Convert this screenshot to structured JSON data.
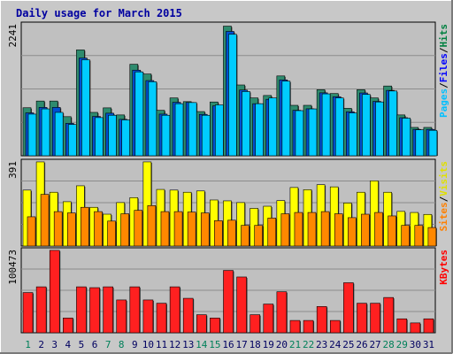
{
  "chart_data": {
    "type": "bar",
    "title": "Daily usage for March 2015",
    "categories": [
      "1",
      "2",
      "3",
      "4",
      "5",
      "6",
      "7",
      "8",
      "9",
      "10",
      "11",
      "12",
      "13",
      "14",
      "15",
      "16",
      "17",
      "18",
      "19",
      "20",
      "21",
      "22",
      "23",
      "24",
      "25",
      "26",
      "27",
      "28",
      "29",
      "30",
      "31"
    ],
    "weekend_days": [
      "1",
      "7",
      "8",
      "14",
      "15",
      "21",
      "22",
      "28",
      "29"
    ],
    "panels": [
      {
        "id": "hits-files-pages",
        "ymax_label": "2241",
        "ymax": 2241,
        "legend": [
          {
            "label": "Pages",
            "color": "#00c0ff"
          },
          {
            "label": "/",
            "color": "#000000"
          },
          {
            "label": "Files",
            "color": "#0000ff"
          },
          {
            "label": "/",
            "color": "#000000"
          },
          {
            "label": "Hits",
            "color": "#008040"
          }
        ],
        "series": [
          {
            "name": "Hits",
            "color": "#2e8b6e",
            "values": [
              830,
              946,
              946,
              676,
              1830,
              750,
              828,
              706,
              1582,
              1414,
              786,
              1000,
              936,
              764,
              930,
              2241,
              1224,
              1000,
              1042,
              1380,
              872,
              872,
              1142,
              1076,
              820,
              1142,
              1000,
              1206,
              706,
              490,
              490
            ]
          },
          {
            "name": "Files",
            "color": "#0050d0",
            "values": [
              742,
              836,
              836,
              560,
              1690,
              680,
              736,
              630,
              1480,
              1300,
              720,
              924,
              922,
              716,
              862,
              2150,
              1136,
              900,
              976,
              1312,
              786,
              812,
              1088,
              1020,
              760,
              1086,
              940,
              1130,
              658,
              456,
              456
            ]
          },
          {
            "name": "Pages",
            "color": "#00ccff",
            "values": [
              720,
              810,
              750,
              540,
              1660,
              660,
              700,
              620,
              1450,
              1280,
              700,
              900,
              920,
              700,
              880,
              2100,
              1110,
              900,
              1000,
              1290,
              780,
              810,
              1070,
              1000,
              740,
              1060,
              930,
              1120,
              650,
              450,
              440
            ]
          }
        ]
      },
      {
        "id": "visits-sites",
        "ymax_label": "391",
        "ymax": 391,
        "legend": [
          {
            "label": "Sites",
            "color": "#ff8000"
          },
          {
            "label": "/",
            "color": "#000000"
          },
          {
            "label": "Visits",
            "color": "#e0e000"
          }
        ],
        "series": [
          {
            "name": "Visits",
            "color": "#ffff00",
            "values": [
              260,
              391,
              250,
              206,
              280,
              180,
              148,
              202,
              225,
              391,
              263,
              260,
              250,
              256,
              214,
              210,
              202,
              175,
              185,
              211,
              272,
              262,
              285,
              275,
              200,
              250,
              303,
              250,
              161,
              156,
              147
            ]
          },
          {
            "name": "Sites",
            "color": "#ff8800",
            "values": [
              136,
              240,
              160,
              154,
              180,
              160,
              116,
              150,
              166,
              188,
              160,
              160,
              158,
              154,
              118,
              120,
              96,
              96,
              130,
              150,
              156,
              156,
              160,
              150,
              132,
              148,
              156,
              140,
              96,
              96,
              86
            ]
          }
        ]
      },
      {
        "id": "kbytes",
        "ymax_label": "100473",
        "ymax": 100473,
        "legend": [
          {
            "label": "KBytes",
            "color": "#ff0000"
          }
        ],
        "series": [
          {
            "name": "KBytes",
            "color": "#ff2020",
            "values": [
              49000,
              56000,
              100473,
              18000,
              56000,
              55000,
              56000,
              40000,
              56000,
              40000,
              36000,
              56000,
              42000,
              22000,
              18000,
              76000,
              68000,
              22000,
              35000,
              50000,
              15000,
              15000,
              32000,
              15000,
              61000,
              36000,
              36000,
              43000,
              17000,
              12000,
              17000
            ]
          }
        ]
      }
    ]
  }
}
